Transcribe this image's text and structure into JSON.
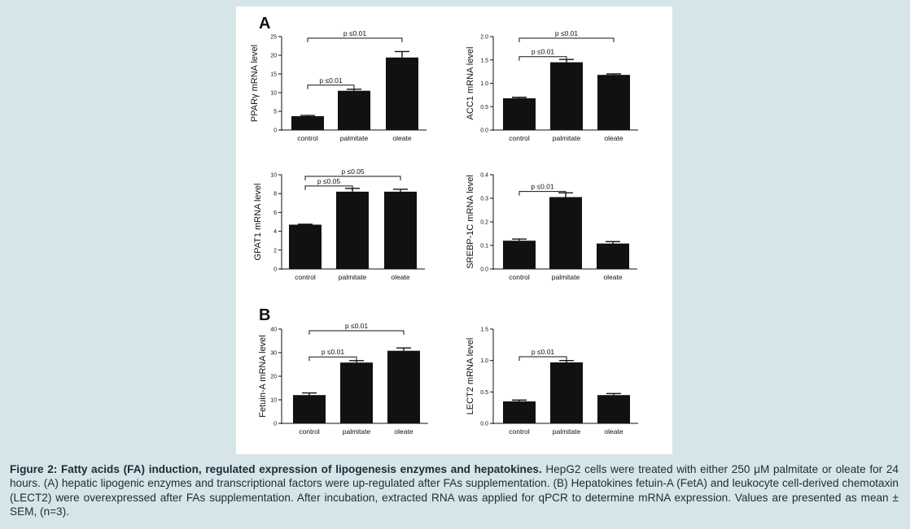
{
  "figure": {
    "panel_labels": [
      "A",
      "B"
    ],
    "caption_bold": "Figure 2: Fatty acids (FA) induction, regulated expression of lipogenesis enzymes and hepatokines.",
    "caption_text": " HepG2 cells were treated with either 250 μM palmitate or oleate for 24 hours. (A) hepatic lipogenic enzymes and transcriptional factors were up-regulated after FAs supplementation. (B) Hepatokines fetuin-A (FetA) and leukocyte cell-derived chemotaxin (LECT2) were overexpressed after FAs supplementation. After incubation, extracted RNA was applied for qPCR to determine mRNA expression. Values are presented as mean ± SEM, (n=3)."
  },
  "colors": {
    "bar": "#111111",
    "background": "#d6e5e8",
    "panel": "#ffffff",
    "caption": "#1f2a3a"
  },
  "chart_data": [
    {
      "type": "bar",
      "panel": "A",
      "categories": [
        "control",
        "palmitate",
        "oleate"
      ],
      "values": [
        3.7,
        10.5,
        19.4
      ],
      "errors": [
        0.2,
        0.4,
        1.6
      ],
      "ylabel": "PPARγ mRNA level",
      "ylim": [
        0,
        25
      ],
      "yticks": [
        "0",
        "5",
        "10",
        "15",
        "20",
        "25"
      ],
      "annotations": [
        {
          "text": "p ≤0.01",
          "from": 0,
          "to": 1,
          "level": 1
        },
        {
          "text": "p ≤0.01",
          "from": 0,
          "to": 2,
          "level": 2
        }
      ]
    },
    {
      "type": "bar",
      "panel": "A",
      "categories": [
        "control",
        "palmitate",
        "oleate"
      ],
      "values": [
        0.68,
        1.45,
        1.18
      ],
      "errors": [
        0.02,
        0.06,
        0.02
      ],
      "ylabel": "ACC1 mRNA level",
      "ylim": [
        0,
        2.0
      ],
      "yticks": [
        "0.0",
        "0.5",
        "1.0",
        "1.5",
        "2.0"
      ],
      "annotations": [
        {
          "text": "p ≤0.01",
          "from": 0,
          "to": 1,
          "level": 1
        },
        {
          "text": "p ≤0.01",
          "from": 0,
          "to": 2,
          "level": 2
        }
      ]
    },
    {
      "type": "bar",
      "panel": "A",
      "categories": [
        "control",
        "palmitate",
        "oleate"
      ],
      "values": [
        4.7,
        8.2,
        8.2
      ],
      "errors": [
        0.05,
        0.35,
        0.25
      ],
      "ylabel": "GPAT1 mRNA level",
      "ylim": [
        0,
        10
      ],
      "yticks": [
        "0",
        "2",
        "4",
        "6",
        "8",
        "10"
      ],
      "annotations": [
        {
          "text": "p ≤0.05",
          "from": 0,
          "to": 1,
          "level": 1
        },
        {
          "text": "p ≤0.05",
          "from": 0,
          "to": 2,
          "level": 2
        }
      ]
    },
    {
      "type": "bar",
      "panel": "A",
      "categories": [
        "control",
        "palmitate",
        "oleate"
      ],
      "values": [
        0.12,
        0.305,
        0.108
      ],
      "errors": [
        0.007,
        0.018,
        0.008
      ],
      "ylabel": "SREBP-1C mRNA level",
      "ylim": [
        0,
        0.4
      ],
      "yticks": [
        "0.0",
        "0.1",
        "0.2",
        "0.3",
        "0.4"
      ],
      "annotations": [
        {
          "text": "p ≤0.01",
          "from": 0,
          "to": 1,
          "level": 1
        }
      ]
    },
    {
      "type": "bar",
      "panel": "B",
      "categories": [
        "control",
        "palmitate",
        "oleate"
      ],
      "values": [
        12.0,
        25.8,
        30.8
      ],
      "errors": [
        0.9,
        0.8,
        1.2
      ],
      "ylabel": "Fetuin-A mRNA level",
      "ylim": [
        0,
        40
      ],
      "yticks": [
        "0",
        "10",
        "20",
        "30",
        "40"
      ],
      "annotations": [
        {
          "text": "p ≤0.01",
          "from": 0,
          "to": 1,
          "level": 1
        },
        {
          "text": "p ≤0.01",
          "from": 0,
          "to": 2,
          "level": 2
        }
      ]
    },
    {
      "type": "bar",
      "panel": "B",
      "categories": [
        "control",
        "palmitate",
        "oleate"
      ],
      "values": [
        0.35,
        0.97,
        0.45
      ],
      "errors": [
        0.02,
        0.03,
        0.025
      ],
      "ylabel": "LECT2 mRNA level",
      "ylim": [
        0,
        1.5
      ],
      "yticks": [
        "0.0",
        "0.5",
        "1.0",
        "1.5"
      ],
      "annotations": [
        {
          "text": "p ≤0.01",
          "from": 0,
          "to": 1,
          "level": 1
        }
      ]
    }
  ]
}
